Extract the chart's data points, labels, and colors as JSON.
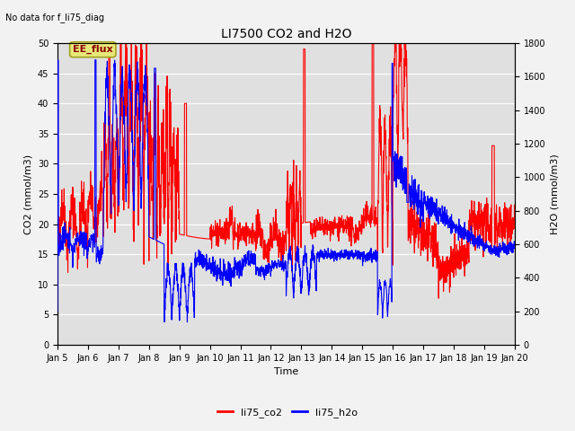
{
  "title": "LI7500 CO2 and H2O",
  "top_left_text": "No data for f_li75_diag",
  "annotation_box": "EE_flux",
  "xlabel": "Time",
  "ylabel_left": "CO2 (mmol/m3)",
  "ylabel_right": "H2O (mmol/m3)",
  "ylim_left": [
    0,
    50
  ],
  "ylim_right": [
    0,
    1800
  ],
  "yticks_left": [
    0,
    5,
    10,
    15,
    20,
    25,
    30,
    35,
    40,
    45,
    50
  ],
  "yticks_right": [
    0,
    200,
    400,
    600,
    800,
    1000,
    1200,
    1400,
    1600,
    1800
  ],
  "xtick_labels": [
    "Jan 5",
    "Jan 6",
    "Jan 7",
    "Jan 8",
    "Jan 9",
    "Jan 10",
    "Jan 11",
    "Jan 12",
    "Jan 13",
    "Jan 14",
    "Jan 15",
    "Jan 16",
    "Jan 17",
    "Jan 18",
    "Jan 19",
    "Jan 20"
  ],
  "background_color": "#e0e0e0",
  "co2_color": "red",
  "h2o_color": "blue",
  "line_width": 0.8,
  "fig_bg": "#f2f2f2",
  "grid_color": "white",
  "annotation_box_color": "#e8e878",
  "annotation_box_edge": "#a0a020",
  "title_fontsize": 10,
  "label_fontsize": 8,
  "tick_fontsize": 7,
  "legend_fontsize": 8
}
